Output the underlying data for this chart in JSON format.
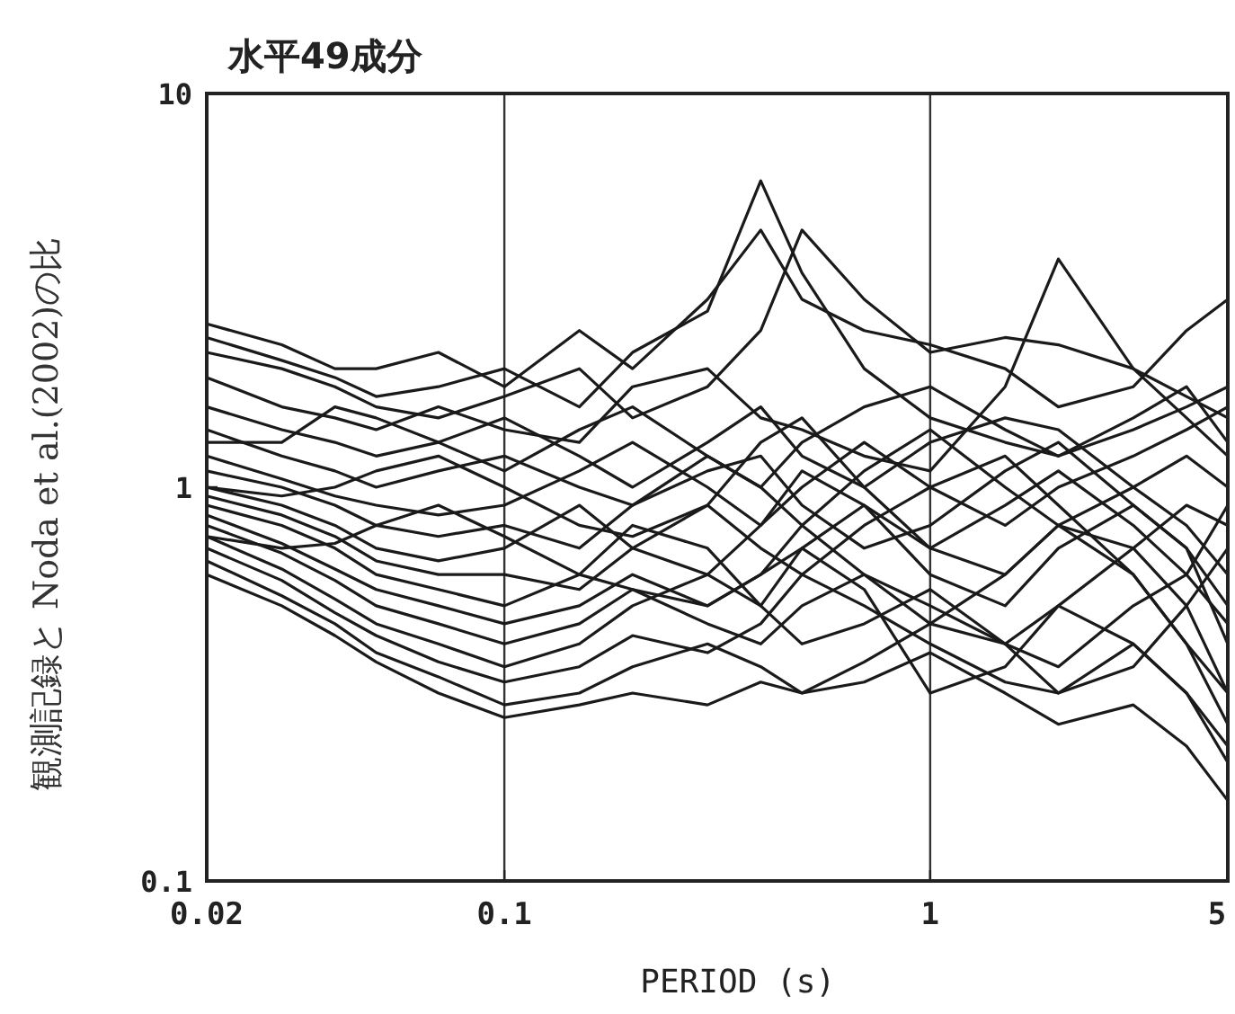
{
  "chart_data": {
    "type": "line",
    "title": "水平49成分",
    "xlabel": "PERIOD (s)",
    "ylabel": "観測記録と Noda et al.(2002)の比",
    "log": "xy",
    "grid": "x",
    "line_style": "solid",
    "xlim": [
      0.02,
      5
    ],
    "ylim": [
      0.1,
      10
    ],
    "xticks": [
      0.02,
      0.1,
      1,
      5
    ],
    "yticks": [
      0.1,
      1,
      10
    ],
    "x": [
      0.02,
      0.03,
      0.04,
      0.05,
      0.07,
      0.1,
      0.15,
      0.2,
      0.3,
      0.4,
      0.5,
      0.7,
      1,
      1.5,
      2,
      3,
      4,
      5
    ],
    "series": [
      {
        "color": "#1a1a1a",
        "values": [
          2.6,
          2.3,
          2.0,
          2.0,
          2.2,
          1.8,
          2.5,
          2.0,
          3.0,
          4.5,
          3.0,
          2.5,
          2.3,
          2.0,
          1.6,
          1.8,
          2.5,
          3.0
        ]
      },
      {
        "color": "#1a1a1a",
        "values": [
          2.4,
          2.1,
          1.9,
          1.7,
          1.8,
          2.0,
          1.6,
          2.2,
          2.8,
          6.0,
          3.5,
          2.0,
          1.5,
          1.3,
          1.2,
          1.4,
          1.6,
          1.8
        ]
      },
      {
        "color": "#1a1a1a",
        "values": [
          2.2,
          2.0,
          1.8,
          1.6,
          1.5,
          1.7,
          2.0,
          1.5,
          1.8,
          2.5,
          4.5,
          3.0,
          2.2,
          2.4,
          2.3,
          2.0,
          1.7,
          1.5
        ]
      },
      {
        "color": "#1a1a1a",
        "values": [
          1.9,
          1.6,
          1.5,
          1.4,
          1.6,
          1.4,
          1.3,
          1.8,
          2.0,
          1.5,
          1.4,
          1.2,
          1.1,
          1.8,
          3.8,
          2.0,
          1.5,
          1.2
        ]
      },
      {
        "color": "#1a1a1a",
        "values": [
          1.6,
          1.4,
          1.3,
          1.2,
          1.3,
          1.5,
          1.2,
          1.0,
          1.3,
          1.6,
          1.2,
          1.0,
          1.3,
          1.5,
          1.4,
          1.0,
          0.8,
          0.6
        ]
      },
      {
        "color": "#1a1a1a",
        "values": [
          1.4,
          1.2,
          1.1,
          1.0,
          1.1,
          1.2,
          1.0,
          0.9,
          1.2,
          1.0,
          0.8,
          1.1,
          1.4,
          1.0,
          0.8,
          0.7,
          0.5,
          0.3
        ]
      },
      {
        "color": "#1a1a1a",
        "values": [
          1.2,
          1.05,
          0.95,
          0.9,
          0.85,
          0.9,
          1.1,
          1.3,
          1.0,
          0.8,
          1.0,
          1.3,
          1.0,
          0.8,
          1.0,
          1.2,
          1.4,
          1.6
        ]
      },
      {
        "color": "#1a1a1a",
        "values": [
          1.1,
          1.0,
          0.9,
          0.8,
          0.75,
          0.8,
          0.7,
          0.9,
          1.1,
          1.2,
          0.9,
          0.7,
          0.8,
          1.1,
          1.3,
          0.9,
          0.7,
          0.5
        ]
      },
      {
        "color": "#1a1a1a",
        "values": [
          1.0,
          0.9,
          0.8,
          0.7,
          0.65,
          0.7,
          0.9,
          0.7,
          0.6,
          0.8,
          1.1,
          0.9,
          0.7,
          0.6,
          0.8,
          1.0,
          1.2,
          1.0
        ]
      },
      {
        "color": "#1a1a1a",
        "values": [
          0.95,
          0.85,
          0.75,
          0.65,
          0.6,
          0.6,
          0.55,
          0.7,
          0.9,
          0.7,
          0.6,
          0.8,
          1.0,
          1.2,
          0.9,
          0.6,
          0.4,
          0.25
        ]
      },
      {
        "color": "#1a1a1a",
        "values": [
          0.9,
          0.8,
          0.7,
          0.6,
          0.55,
          0.5,
          0.6,
          0.8,
          0.7,
          0.5,
          0.7,
          0.9,
          0.6,
          0.5,
          0.7,
          0.9,
          0.7,
          0.4
        ]
      },
      {
        "color": "#1a1a1a",
        "values": [
          0.85,
          0.72,
          0.62,
          0.55,
          0.5,
          0.45,
          0.5,
          0.6,
          0.5,
          0.6,
          0.8,
          0.6,
          0.45,
          0.6,
          0.8,
          0.6,
          0.4,
          0.3
        ]
      },
      {
        "color": "#1a1a1a",
        "values": [
          0.8,
          0.68,
          0.58,
          0.5,
          0.45,
          0.4,
          0.45,
          0.55,
          0.45,
          0.4,
          0.5,
          0.6,
          0.5,
          0.4,
          0.5,
          0.7,
          0.9,
          0.8
        ]
      },
      {
        "color": "#1a1a1a",
        "values": [
          0.75,
          0.62,
          0.52,
          0.45,
          0.4,
          0.35,
          0.4,
          0.5,
          0.6,
          0.5,
          0.4,
          0.45,
          0.55,
          0.4,
          0.3,
          0.35,
          0.5,
          0.7
        ]
      },
      {
        "color": "#1a1a1a",
        "values": [
          0.7,
          0.58,
          0.48,
          0.42,
          0.36,
          0.32,
          0.35,
          0.42,
          0.38,
          0.45,
          0.6,
          0.5,
          0.4,
          0.32,
          0.3,
          0.4,
          0.3,
          0.2
        ]
      },
      {
        "color": "#1a1a1a",
        "values": [
          0.65,
          0.53,
          0.45,
          0.38,
          0.33,
          0.28,
          0.3,
          0.35,
          0.4,
          0.35,
          0.3,
          0.32,
          0.38,
          0.3,
          0.25,
          0.28,
          0.22,
          0.16
        ]
      },
      {
        "color": "#1a1a1a",
        "values": [
          0.6,
          0.5,
          0.42,
          0.36,
          0.3,
          0.26,
          0.28,
          0.3,
          0.28,
          0.32,
          0.3,
          0.36,
          0.45,
          0.4,
          0.35,
          0.5,
          0.6,
          0.9
        ]
      },
      {
        "color": "#1a1a1a",
        "values": [
          1.3,
          1.3,
          1.6,
          1.5,
          1.3,
          1.1,
          1.4,
          1.6,
          1.2,
          1.0,
          1.3,
          1.6,
          1.8,
          1.4,
          1.2,
          1.5,
          1.8,
          1.3
        ]
      },
      {
        "color": "#1a1a1a",
        "values": [
          1.0,
          0.95,
          1.0,
          1.1,
          1.2,
          1.0,
          0.8,
          0.75,
          0.9,
          1.3,
          1.5,
          1.0,
          0.7,
          0.9,
          1.1,
          0.8,
          0.6,
          0.45
        ]
      },
      {
        "color": "#1a1a1a",
        "values": [
          0.75,
          0.7,
          0.72,
          0.8,
          0.9,
          0.75,
          0.6,
          0.55,
          0.5,
          0.6,
          0.7,
          0.55,
          0.3,
          0.35,
          0.5,
          0.4,
          0.3,
          0.22
        ]
      }
    ]
  }
}
